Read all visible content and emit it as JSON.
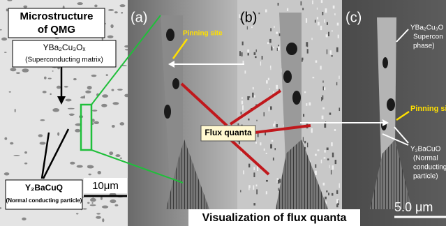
{
  "left_panel": {
    "title_line1": "Microstructure",
    "title_line2": "of QMG",
    "matrix_label": {
      "formula": "YBa₂Cu₃Oₓ",
      "description": "(Superconducting matrix)"
    },
    "particle_label": {
      "formula": "Y₂BaCuQ",
      "description": "(Normal conducting particle)"
    },
    "scale_bar": "10μm"
  },
  "panels": [
    {
      "label": "(a)",
      "annotation": "Pinning site"
    },
    {
      "label": "(b)"
    },
    {
      "label": "(c)",
      "phase_label": {
        "formula": "YBa₂Cu₃O",
        "line2": "Supercon",
        "line3": "phase)"
      },
      "annotation": "Pinning sit",
      "particle_label": {
        "formula": "Y₂BaCuO",
        "line2": "(Normal",
        "line3": "conducting",
        "line4": "particle)"
      },
      "scale_bar": "5.0 μm"
    }
  ],
  "flux_label": "Flux quanta",
  "caption": "Visualization of flux quanta"
}
